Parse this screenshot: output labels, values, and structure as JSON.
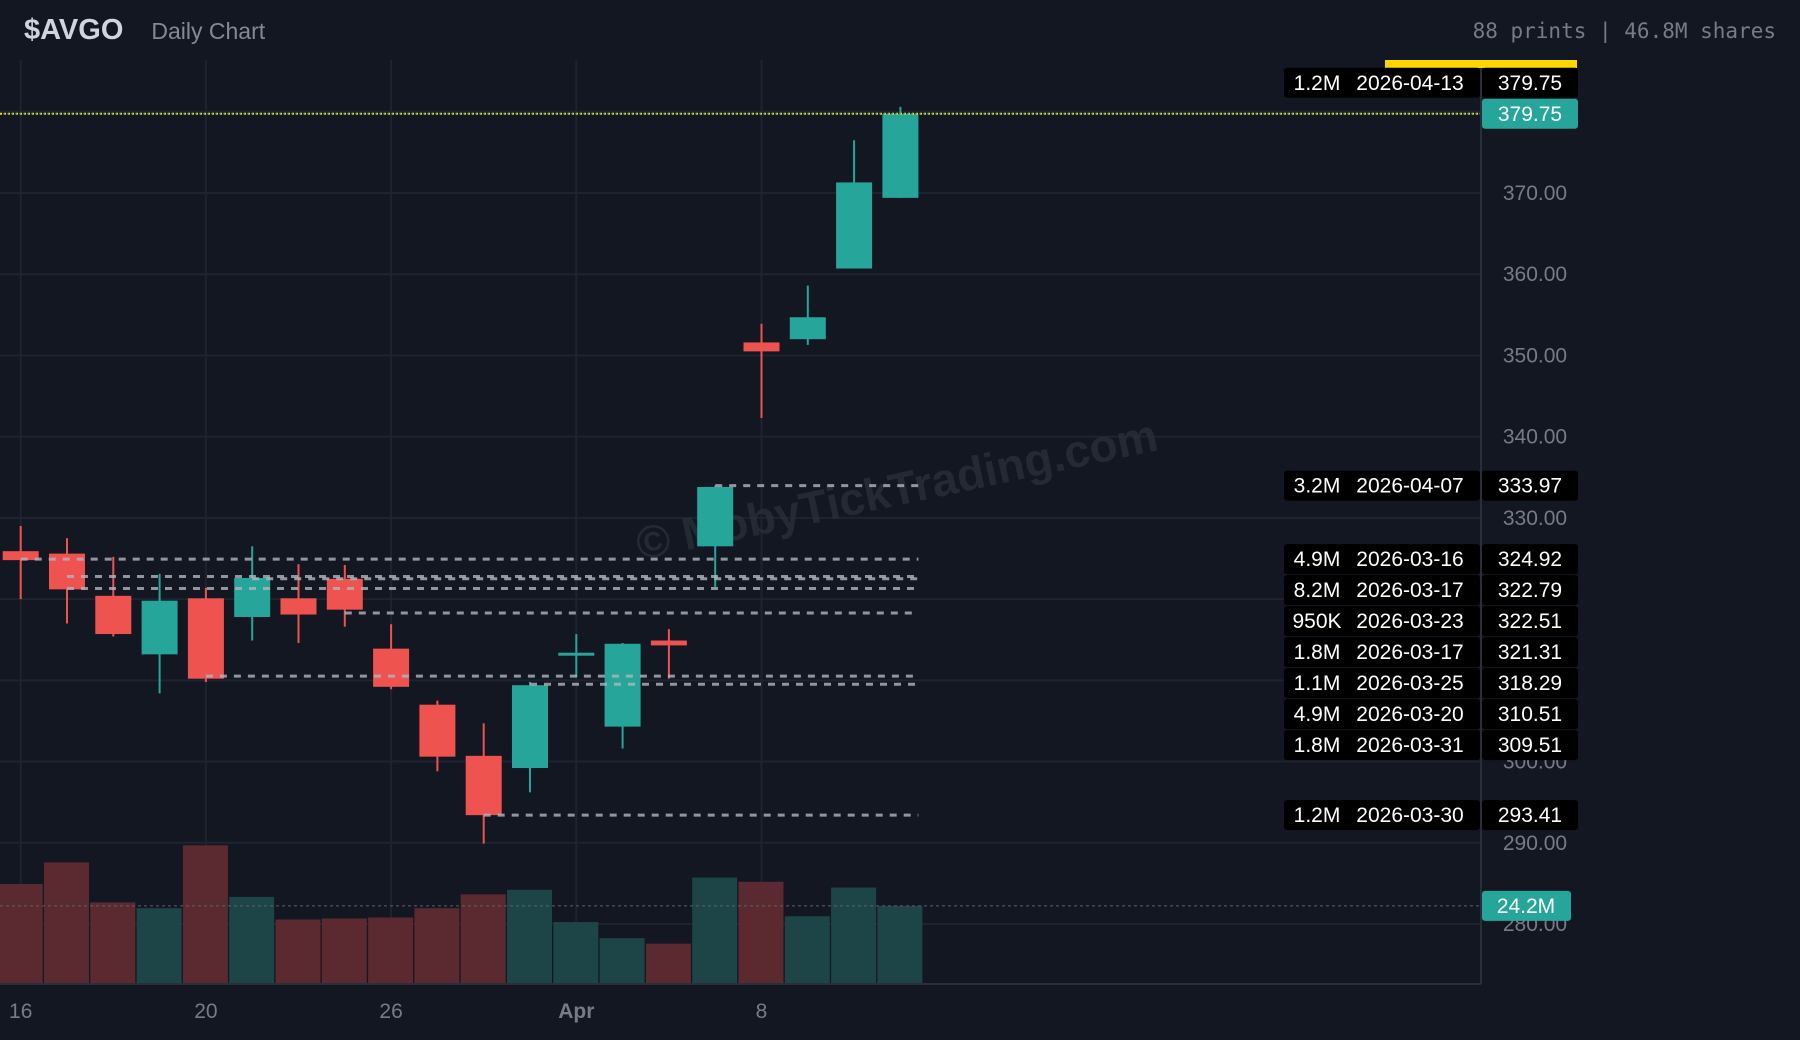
{
  "header": {
    "ticker": "$AVGO",
    "subtitle": "Daily Chart",
    "stats": "88 prints | 46.8M shares"
  },
  "watermark": "© MobyTickTrading.com",
  "colors": {
    "bg": "#131722",
    "up": "#26a69a",
    "down": "#ef5350",
    "vol_up": "#1d4547",
    "vol_down": "#5b2a31",
    "grid": "#1f2330",
    "level": "#b2b5be",
    "highlight": "#ffd600"
  },
  "chart_data": {
    "type": "candlestick",
    "title": "$AVGO Daily Chart",
    "dates": [
      "2026-03-16",
      "2026-03-17",
      "2026-03-18",
      "2026-03-19",
      "2026-03-20",
      "2026-03-23",
      "2026-03-24",
      "2026-03-25",
      "2026-03-26",
      "2026-03-27",
      "2026-03-30",
      "2026-03-31",
      "2026-04-01",
      "2026-04-02",
      "2026-04-06",
      "2026-04-07",
      "2026-04-08",
      "2026-04-09",
      "2026-04-10",
      "2026-04-13"
    ],
    "ohlc": [
      [
        325.9,
        329.0,
        320.0,
        324.8
      ],
      [
        325.6,
        327.5,
        317.0,
        321.2
      ],
      [
        320.4,
        325.2,
        315.4,
        315.7
      ],
      [
        313.2,
        323.1,
        308.4,
        319.8
      ],
      [
        320.1,
        321.4,
        309.8,
        310.2
      ],
      [
        317.8,
        326.5,
        314.9,
        322.6
      ],
      [
        320.1,
        324.3,
        314.6,
        318.1
      ],
      [
        322.5,
        324.2,
        316.6,
        318.7
      ],
      [
        313.9,
        316.9,
        308.9,
        309.2
      ],
      [
        307.0,
        307.5,
        298.8,
        300.6
      ],
      [
        300.7,
        304.7,
        289.9,
        293.4
      ],
      [
        299.2,
        309.8,
        296.2,
        309.4
      ],
      [
        313.2,
        315.7,
        310.4,
        313.4
      ],
      [
        304.3,
        314.6,
        301.6,
        314.5
      ],
      [
        314.9,
        316.3,
        310.2,
        314.3
      ],
      [
        326.5,
        333.97,
        321.5,
        333.8
      ],
      [
        351.6,
        353.9,
        342.3,
        350.5
      ],
      [
        352.0,
        358.6,
        351.3,
        354.7
      ],
      [
        360.7,
        376.5,
        360.7,
        371.3
      ],
      [
        369.4,
        380.6,
        369.4,
        379.75
      ]
    ],
    "volume_millions": [
      31,
      37.7,
      25.3,
      23.5,
      43,
      27,
      20,
      20.3,
      20.6,
      23.5,
      27.8,
      29.2,
      19.2,
      14.2,
      12.5,
      33,
      31.7,
      21,
      29.9,
      24.2
    ],
    "x_tick_labels": [
      {
        "index": 0,
        "label": "16"
      },
      {
        "index": 4,
        "label": "20"
      },
      {
        "index": 8,
        "label": "26"
      },
      {
        "index": 12,
        "label": "Apr"
      },
      {
        "index": 16,
        "label": "8"
      }
    ],
    "y_ticks": [
      {
        "v": 370,
        "label": "370.00"
      },
      {
        "v": 360,
        "label": "360.00"
      },
      {
        "v": 350,
        "label": "350.00"
      },
      {
        "v": 340,
        "label": "340.00"
      },
      {
        "v": 330,
        "label": "330.00"
      },
      {
        "v": 300,
        "label": "300.00"
      },
      {
        "v": 290,
        "label": "290.00"
      },
      {
        "v": 280,
        "label": "280.00"
      }
    ],
    "ylim": [
      276,
      386
    ],
    "last_price": {
      "value": 379.75,
      "label": "379.75"
    },
    "last_volume": {
      "value": 24.2,
      "label": "24.2M"
    },
    "prints": [
      {
        "size": "1.2M",
        "date": "2026-04-13",
        "price": 379.75,
        "label": "379.75",
        "from": 19
      },
      {
        "size": "3.2M",
        "date": "2026-04-07",
        "price": 333.97,
        "label": "333.97",
        "from": 15
      },
      {
        "size": "4.9M",
        "date": "2026-03-16",
        "price": 324.92,
        "label": "324.92",
        "from": 0
      },
      {
        "size": "8.2M",
        "date": "2026-03-17",
        "price": 322.79,
        "label": "322.79",
        "from": 1
      },
      {
        "size": "950K",
        "date": "2026-03-23",
        "price": 322.51,
        "label": "322.51",
        "from": 5
      },
      {
        "size": "1.8M",
        "date": "2026-03-17",
        "price": 321.31,
        "label": "321.31",
        "from": 1
      },
      {
        "size": "1.1M",
        "date": "2026-03-25",
        "price": 318.29,
        "label": "318.29",
        "from": 7
      },
      {
        "size": "4.9M",
        "date": "2026-03-20",
        "price": 310.51,
        "label": "310.51",
        "from": 4
      },
      {
        "size": "1.8M",
        "date": "2026-03-31",
        "price": 309.51,
        "label": "309.51",
        "from": 11
      },
      {
        "size": "1.2M",
        "date": "2026-03-30",
        "price": 293.41,
        "label": "293.41",
        "from": 10
      }
    ]
  }
}
